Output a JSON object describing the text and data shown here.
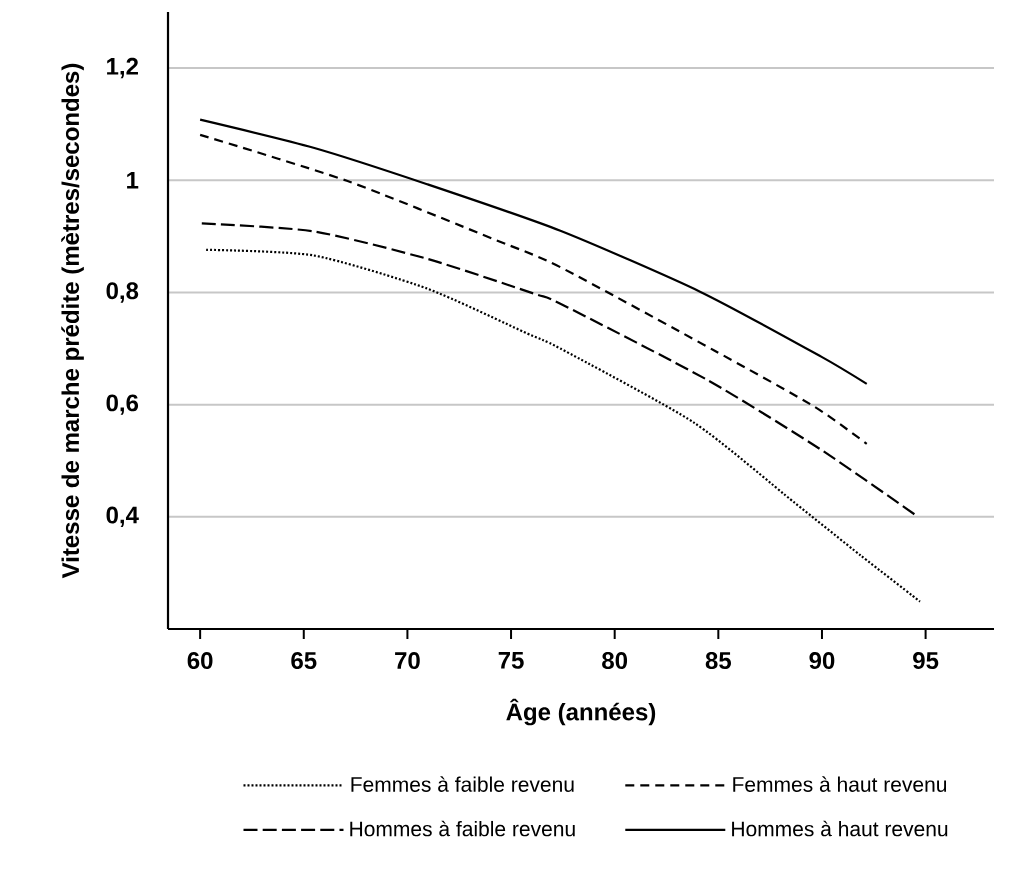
{
  "chart_data": {
    "type": "line",
    "xlabel": "Âge (années)",
    "ylabel": "Vitesse de marche prédite (mètres/secondes)",
    "xlim": [
      58.45,
      98.3
    ],
    "ylim": [
      0.2,
      1.3
    ],
    "xticks": [
      60,
      65,
      70,
      75,
      80,
      85,
      90,
      95
    ],
    "yticks": [
      {
        "value": 0.4,
        "label": "0,4"
      },
      {
        "value": 0.6,
        "label": "0,6"
      },
      {
        "value": 0.8,
        "label": "0,8"
      },
      {
        "value": 1,
        "label": "1"
      },
      {
        "value": 1.2,
        "label": "1,2"
      }
    ],
    "grid": "y",
    "legend": "bottom",
    "series": [
      {
        "name": "Femmes à faible revenu",
        "color": "#000000",
        "line_style": "dotted",
        "x": [
          60.29,
          65.47,
          70.95,
          75.77,
          77.38,
          83.82,
          88.65,
          91.87,
          94.73
        ],
        "values": [
          0.876,
          0.866,
          0.807,
          0.727,
          0.7,
          0.568,
          0.426,
          0.331,
          0.249
        ]
      },
      {
        "name": "Femmes à haut revenu",
        "color": "#000000",
        "line_style": "dashed",
        "x": [
          60,
          67.08,
          74.16,
          77.38,
          84.78,
          89.61,
          92.16
        ],
        "values": [
          1.081,
          0.999,
          0.895,
          0.845,
          0.697,
          0.597,
          0.53
        ]
      },
      {
        "name": "Hommes à faible revenu",
        "color": "#000000",
        "line_style": "longdash",
        "x": [
          60.08,
          65.47,
          70.95,
          76.1,
          77.38,
          84.47,
          89.94,
          94.48
        ],
        "values": [
          0.923,
          0.909,
          0.86,
          0.798,
          0.78,
          0.644,
          0.52,
          0.404
        ]
      },
      {
        "name": "Hommes à haut revenu",
        "color": "#000000",
        "line_style": "solid",
        "x": [
          60,
          65.47,
          70.95,
          77.38,
          84.14,
          89.94,
          92.16
        ],
        "values": [
          1.108,
          1.058,
          0.993,
          0.91,
          0.801,
          0.686,
          0.637
        ]
      }
    ]
  }
}
